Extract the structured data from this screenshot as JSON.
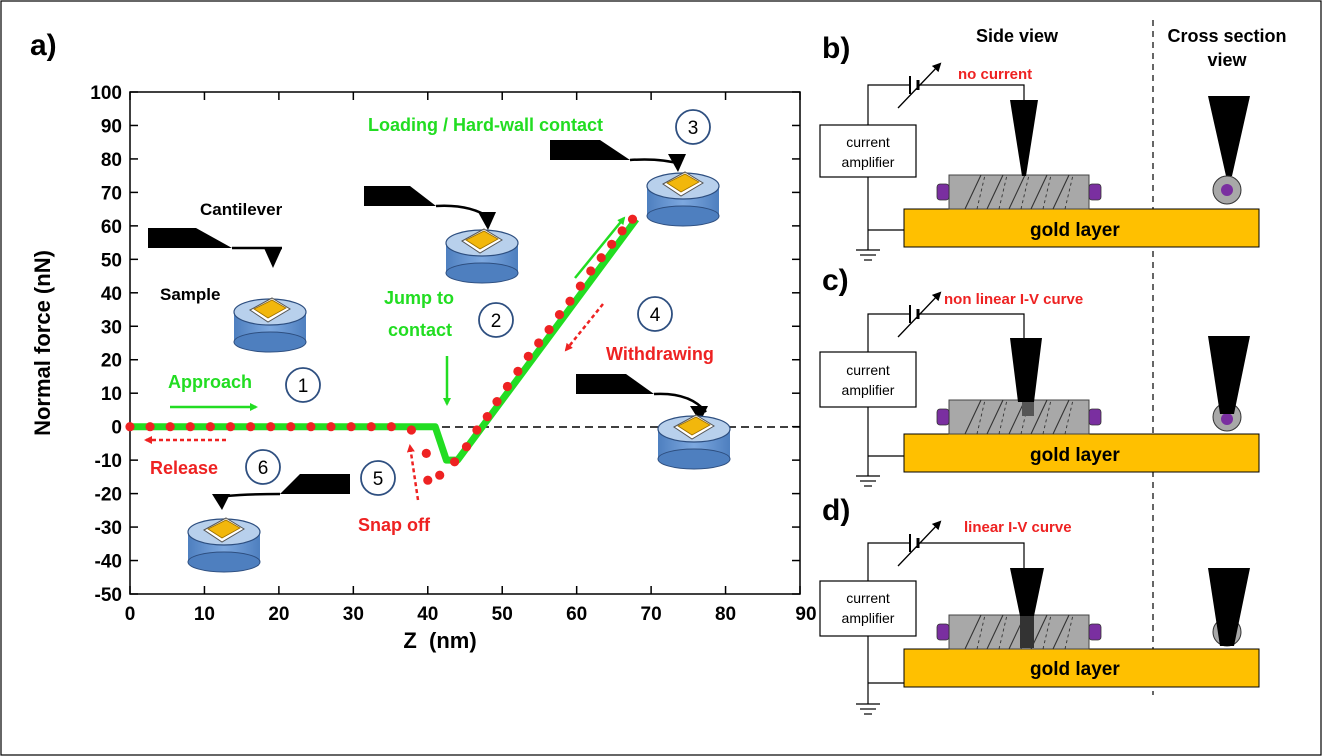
{
  "panels": {
    "a": "a)",
    "b": "b)",
    "c": "c)",
    "d": "d)"
  },
  "chart_data": {
    "type": "scatter",
    "xlabel": "Z  (nm)",
    "ylabel": "Normal force (nN)",
    "xlim": [
      0,
      90
    ],
    "ylim": [
      -50,
      100
    ],
    "x_ticks": [
      "0",
      "10",
      "20",
      "30",
      "40",
      "50",
      "60",
      "70",
      "80",
      "90"
    ],
    "y_ticks": [
      "100",
      "90",
      "80",
      "70",
      "60",
      "50",
      "40",
      "30",
      "20",
      "10",
      "0",
      "-10",
      "-20",
      "-30",
      "-40",
      "-50"
    ],
    "series": [
      {
        "color": "#22dd22",
        "style": "line",
        "points": [
          [
            0,
            0
          ],
          [
            41,
            0
          ],
          [
            42.5,
            -10
          ],
          [
            44,
            -10
          ],
          [
            68,
            62
          ]
        ]
      },
      {
        "color": "#ee2222",
        "style": "dots",
        "points": [
          [
            0,
            0
          ],
          [
            2.7,
            0
          ],
          [
            5.4,
            0
          ],
          [
            8.1,
            0
          ],
          [
            10.8,
            0
          ],
          [
            13.5,
            0
          ],
          [
            16.2,
            0
          ],
          [
            18.9,
            0
          ],
          [
            21.6,
            0
          ],
          [
            24.3,
            0
          ],
          [
            27,
            0
          ],
          [
            29.7,
            0
          ],
          [
            32.4,
            0
          ],
          [
            35.1,
            0
          ],
          [
            37.8,
            -1
          ],
          [
            39.8,
            -8
          ],
          [
            40,
            -16
          ],
          [
            41.6,
            -14.5
          ],
          [
            43.6,
            -10.5
          ],
          [
            45.2,
            -6
          ],
          [
            46.6,
            -1
          ],
          [
            48,
            3
          ],
          [
            49.3,
            7.5
          ],
          [
            50.7,
            12
          ],
          [
            52.1,
            16.5
          ],
          [
            53.5,
            21
          ],
          [
            54.9,
            25
          ],
          [
            56.3,
            29
          ],
          [
            57.7,
            33.5
          ],
          [
            59.1,
            37.5
          ],
          [
            60.5,
            42
          ],
          [
            61.9,
            46.5
          ],
          [
            63.3,
            50.5
          ],
          [
            64.7,
            54.5
          ],
          [
            66.1,
            58.5
          ],
          [
            67.5,
            62
          ]
        ]
      }
    ]
  },
  "annotations": {
    "loading": "Loading / Hard-wall contact",
    "jump1": "Jump to",
    "jump2": "contact",
    "approach": "Approach",
    "release": "Release",
    "snapoff": "Snap off",
    "withdrawing": "Withdrawing",
    "cantilever": "Cantilever",
    "sample": "Sample",
    "steps": [
      "1",
      "2",
      "3",
      "4",
      "5",
      "6"
    ]
  },
  "diagram": {
    "side_view": "Side view",
    "cross_section_1": "Cross section",
    "cross_section_2": "view",
    "amp1": "current",
    "amp2": "amplifier",
    "gold": "gold layer",
    "label_b": "no current",
    "label_c": "non linear I-V curve",
    "label_d": "linear I-V curve"
  }
}
